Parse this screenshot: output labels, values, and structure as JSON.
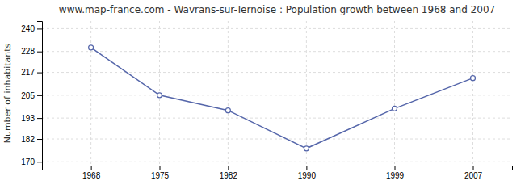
{
  "chart_data": {
    "type": "line",
    "title": "www.map-france.com - Wavrans-sur-Ternoise : Population growth between 1968 and 2007",
    "ylabel": "Number of inhabitants",
    "x": [
      1968,
      1975,
      1982,
      1990,
      1999,
      2007
    ],
    "values": [
      230,
      205,
      197,
      177,
      198,
      214
    ],
    "xlim": [
      1963,
      2011
    ],
    "ylim": [
      168,
      244
    ],
    "xticks": [
      1968,
      1975,
      1982,
      1990,
      1999,
      2007
    ],
    "yticks": [
      170,
      182,
      193,
      205,
      217,
      228,
      240
    ],
    "color": "#5566aa",
    "marker": "circle",
    "grid": true
  }
}
